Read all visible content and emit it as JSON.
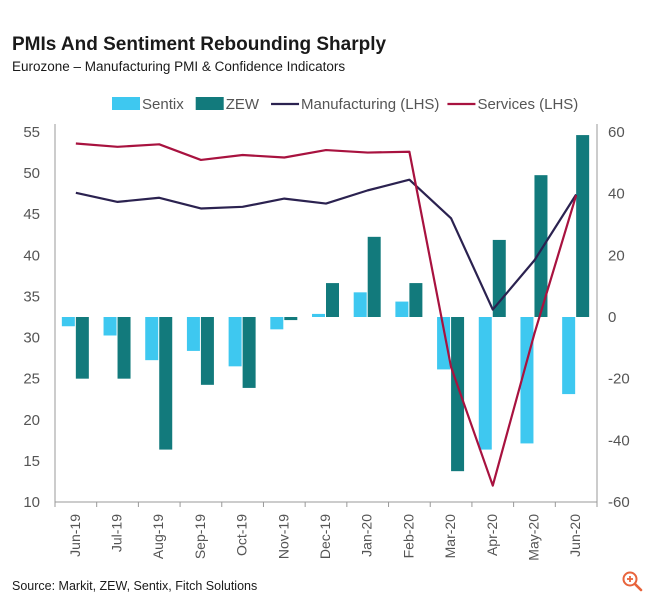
{
  "title": "PMIs And Sentiment Rebounding Sharply",
  "subtitle": "Eurozone – Manufacturing PMI & Confidence Indicators",
  "source": "Source: Markit, ZEW, Sentix, Fitch Solutions",
  "zoom_icon": "zoom-in-icon",
  "colors": {
    "sentix": "#3ec8f0",
    "zew": "#127a7c",
    "manufacturing": "#2b2250",
    "services": "#a8123f",
    "axis": "#999999",
    "text": "#555555",
    "zoom": "#e8643c"
  },
  "chart_data": {
    "type": "bar",
    "categories": [
      "Jun-19",
      "Jul-19",
      "Aug-19",
      "Sep-19",
      "Oct-19",
      "Nov-19",
      "Dec-19",
      "Jan-20",
      "Feb-20",
      "Mar-20",
      "Apr-20",
      "May-20",
      "Jun-20"
    ],
    "y_left": {
      "min": 10,
      "max": 55,
      "ticks": [
        "10",
        "15",
        "20",
        "25",
        "30",
        "35",
        "40",
        "45",
        "50",
        "55"
      ]
    },
    "y_right": {
      "min": -60,
      "max": 60,
      "ticks": [
        "-60",
        "-40",
        "-20",
        "0",
        "20",
        "40",
        "60"
      ]
    },
    "series": [
      {
        "name": "Sentix",
        "type": "bar",
        "axis": "right",
        "values": [
          -3,
          -6,
          -14,
          -11,
          -16,
          -4,
          1,
          8,
          5,
          -17,
          -43,
          -41,
          -25
        ]
      },
      {
        "name": "ZEW",
        "type": "bar",
        "axis": "right",
        "values": [
          -20,
          -20,
          -43,
          -22,
          -23,
          -1,
          11,
          26,
          11,
          -50,
          25,
          46,
          59
        ]
      },
      {
        "name": "Manufacturing (LHS)",
        "type": "line",
        "axis": "left",
        "values": [
          47.6,
          46.5,
          47.0,
          45.7,
          45.9,
          46.9,
          46.3,
          47.9,
          49.2,
          44.5,
          33.4,
          39.4,
          47.4
        ]
      },
      {
        "name": "Services (LHS)",
        "type": "line",
        "axis": "left",
        "values": [
          53.6,
          53.2,
          53.5,
          51.6,
          52.2,
          51.9,
          52.8,
          52.5,
          52.6,
          26.4,
          12.0,
          30.5,
          47.3
        ]
      }
    ],
    "legend_position": "top-center",
    "grid": false
  }
}
